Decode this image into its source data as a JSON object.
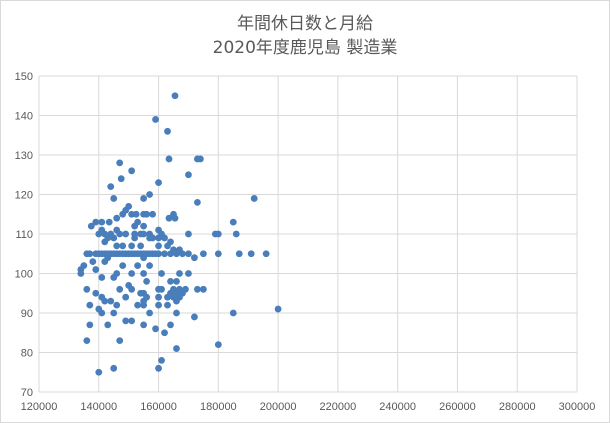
{
  "chart_data": {
    "type": "scatter",
    "title": "年間休日数と月給",
    "subtitle": "2020年度鹿児島  製造業",
    "xlabel": "",
    "ylabel": "",
    "xlim": [
      120000,
      300000
    ],
    "ylim": [
      70,
      150
    ],
    "x_ticks": [
      120000,
      140000,
      160000,
      180000,
      200000,
      220000,
      240000,
      260000,
      280000,
      300000
    ],
    "y_ticks": [
      70,
      80,
      90,
      100,
      110,
      120,
      130,
      140,
      150
    ],
    "grid": "vertical and horizontal major",
    "legend": "none",
    "marker_color": "#4a7ebb",
    "gridline_color": "#d9d9d9",
    "points": [
      [
        165500,
        145
      ],
      [
        159000,
        139
      ],
      [
        163000,
        136
      ],
      [
        173000,
        129
      ],
      [
        174000,
        129
      ],
      [
        163500,
        129
      ],
      [
        147000,
        128
      ],
      [
        151000,
        126
      ],
      [
        170000,
        125
      ],
      [
        147500,
        124
      ],
      [
        160000,
        123
      ],
      [
        144000,
        122
      ],
      [
        192000,
        119
      ],
      [
        145000,
        119
      ],
      [
        157000,
        120
      ],
      [
        155000,
        119
      ],
      [
        173000,
        118
      ],
      [
        150000,
        117
      ],
      [
        149000,
        116
      ],
      [
        148000,
        115
      ],
      [
        151000,
        115
      ],
      [
        152500,
        115
      ],
      [
        155000,
        115
      ],
      [
        156000,
        115
      ],
      [
        158000,
        115
      ],
      [
        165000,
        115
      ],
      [
        165500,
        114
      ],
      [
        163500,
        114
      ],
      [
        146000,
        114
      ],
      [
        143500,
        113
      ],
      [
        139000,
        113
      ],
      [
        141000,
        113
      ],
      [
        153000,
        113
      ],
      [
        185000,
        113
      ],
      [
        137500,
        112
      ],
      [
        155000,
        112
      ],
      [
        152000,
        112
      ],
      [
        141000,
        111
      ],
      [
        146000,
        111
      ],
      [
        160000,
        111
      ],
      [
        170000,
        110
      ],
      [
        140000,
        110
      ],
      [
        142000,
        110
      ],
      [
        144000,
        110
      ],
      [
        147000,
        110
      ],
      [
        149000,
        110
      ],
      [
        152000,
        110
      ],
      [
        154000,
        110
      ],
      [
        155000,
        110
      ],
      [
        157000,
        110
      ],
      [
        161000,
        110
      ],
      [
        179000,
        110
      ],
      [
        180000,
        110
      ],
      [
        186000,
        110
      ],
      [
        143000,
        109
      ],
      [
        145000,
        109
      ],
      [
        152000,
        109
      ],
      [
        157000,
        109
      ],
      [
        158000,
        109
      ],
      [
        160000,
        109
      ],
      [
        162000,
        109
      ],
      [
        164000,
        108
      ],
      [
        142000,
        108
      ],
      [
        146000,
        107
      ],
      [
        148000,
        107
      ],
      [
        151000,
        107
      ],
      [
        154000,
        107
      ],
      [
        160000,
        107
      ],
      [
        163000,
        107
      ],
      [
        165000,
        106
      ],
      [
        167000,
        106
      ],
      [
        170000,
        105
      ],
      [
        136000,
        105
      ],
      [
        137000,
        105
      ],
      [
        139000,
        105
      ],
      [
        140000,
        105
      ],
      [
        141000,
        105
      ],
      [
        142000,
        105
      ],
      [
        143000,
        105
      ],
      [
        144000,
        105
      ],
      [
        145000,
        105
      ],
      [
        146000,
        105
      ],
      [
        147000,
        105
      ],
      [
        148000,
        105
      ],
      [
        149000,
        105
      ],
      [
        150000,
        105
      ],
      [
        151000,
        105
      ],
      [
        152000,
        105
      ],
      [
        153000,
        105
      ],
      [
        154000,
        105
      ],
      [
        155000,
        105
      ],
      [
        156000,
        105
      ],
      [
        157000,
        105
      ],
      [
        158000,
        105
      ],
      [
        159000,
        105
      ],
      [
        160000,
        105
      ],
      [
        162000,
        105
      ],
      [
        164000,
        105
      ],
      [
        166000,
        105
      ],
      [
        168000,
        105
      ],
      [
        175000,
        105
      ],
      [
        180000,
        105
      ],
      [
        187000,
        105
      ],
      [
        191000,
        105
      ],
      [
        196000,
        105
      ],
      [
        172000,
        104
      ],
      [
        155000,
        104
      ],
      [
        143000,
        104
      ],
      [
        135000,
        102
      ],
      [
        138000,
        103
      ],
      [
        142000,
        103
      ],
      [
        148000,
        102
      ],
      [
        153000,
        102
      ],
      [
        157000,
        102
      ],
      [
        134000,
        101
      ],
      [
        139000,
        101
      ],
      [
        146000,
        100
      ],
      [
        151000,
        100
      ],
      [
        155000,
        100
      ],
      [
        161000,
        100
      ],
      [
        167000,
        100
      ],
      [
        170000,
        100
      ],
      [
        134000,
        100
      ],
      [
        141000,
        99
      ],
      [
        145000,
        99
      ],
      [
        156000,
        98
      ],
      [
        164000,
        98
      ],
      [
        166000,
        98
      ],
      [
        150000,
        97
      ],
      [
        136000,
        96
      ],
      [
        147000,
        96
      ],
      [
        151000,
        96
      ],
      [
        160000,
        96
      ],
      [
        161000,
        96
      ],
      [
        165000,
        96
      ],
      [
        167000,
        96
      ],
      [
        169000,
        96
      ],
      [
        173000,
        96
      ],
      [
        175000,
        96
      ],
      [
        139000,
        95
      ],
      [
        154000,
        95
      ],
      [
        155000,
        95
      ],
      [
        164000,
        95
      ],
      [
        166000,
        95
      ],
      [
        168000,
        95
      ],
      [
        141000,
        94
      ],
      [
        149000,
        94
      ],
      [
        156000,
        94
      ],
      [
        160000,
        94
      ],
      [
        163000,
        94
      ],
      [
        165000,
        94
      ],
      [
        167000,
        94
      ],
      [
        142000,
        93
      ],
      [
        144000,
        93
      ],
      [
        155000,
        93
      ],
      [
        166000,
        93
      ],
      [
        137000,
        92
      ],
      [
        146000,
        92
      ],
      [
        153000,
        92
      ],
      [
        155000,
        92
      ],
      [
        160000,
        92
      ],
      [
        163000,
        92
      ],
      [
        140000,
        91
      ],
      [
        200000,
        91
      ],
      [
        141000,
        90
      ],
      [
        145000,
        90
      ],
      [
        157000,
        90
      ],
      [
        166000,
        90
      ],
      [
        185000,
        90
      ],
      [
        172000,
        89
      ],
      [
        149000,
        88
      ],
      [
        151000,
        88
      ],
      [
        137000,
        87
      ],
      [
        143000,
        87
      ],
      [
        155000,
        87
      ],
      [
        164000,
        87
      ],
      [
        159000,
        86
      ],
      [
        162000,
        85
      ],
      [
        136000,
        83
      ],
      [
        147000,
        83
      ],
      [
        180000,
        82
      ],
      [
        166000,
        81
      ],
      [
        161000,
        78
      ],
      [
        160000,
        76
      ],
      [
        145000,
        76
      ],
      [
        140000,
        75
      ]
    ]
  }
}
